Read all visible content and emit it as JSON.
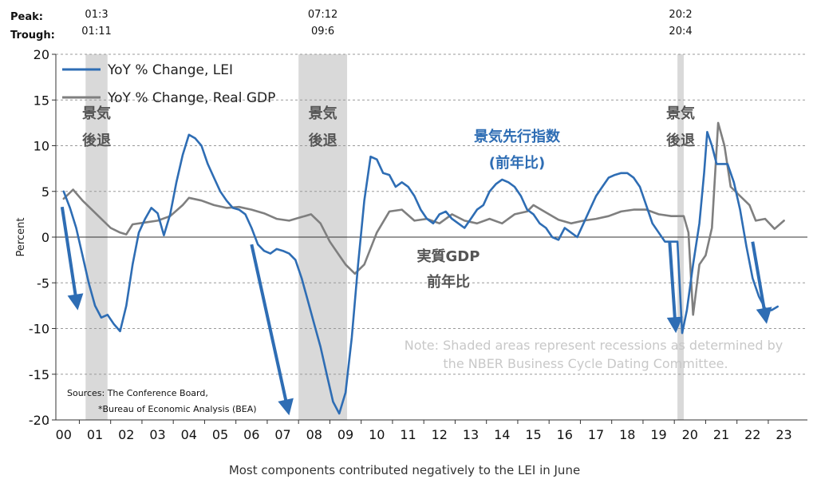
{
  "chart_data": {
    "type": "line",
    "ylabel": "Percent",
    "xlabel": "Most components contributed negatively to the LEI in June",
    "ylim": [
      -20,
      20
    ],
    "yticks": [
      "20",
      "15",
      "10",
      "5",
      "0",
      "-5",
      "-10",
      "-15",
      "-20"
    ],
    "xticks": [
      "00",
      "01",
      "02",
      "03",
      "04",
      "05",
      "06",
      "07",
      "08",
      "09",
      "10",
      "11",
      "12",
      "13",
      "14",
      "15",
      "16",
      "17",
      "18",
      "19",
      "20",
      "21",
      "22",
      "23"
    ],
    "grid": "horizontal dashed",
    "legend_position": "top-left",
    "series": [
      {
        "name": "YoY % Change, LEI",
        "color": "#2e6db4",
        "points": [
          [
            2000.0,
            5.0
          ],
          [
            2000.2,
            3.2
          ],
          [
            2000.4,
            1.0
          ],
          [
            2000.6,
            -2.0
          ],
          [
            2000.8,
            -5.0
          ],
          [
            2001.0,
            -7.5
          ],
          [
            2001.2,
            -8.8
          ],
          [
            2001.4,
            -8.5
          ],
          [
            2001.6,
            -9.5
          ],
          [
            2001.8,
            -10.3
          ],
          [
            2002.0,
            -7.5
          ],
          [
            2002.2,
            -3.0
          ],
          [
            2002.4,
            0.5
          ],
          [
            2002.6,
            2.0
          ],
          [
            2002.8,
            3.2
          ],
          [
            2003.0,
            2.6
          ],
          [
            2003.2,
            0.2
          ],
          [
            2003.4,
            2.5
          ],
          [
            2003.6,
            6.0
          ],
          [
            2003.8,
            9.0
          ],
          [
            2004.0,
            11.2
          ],
          [
            2004.2,
            10.8
          ],
          [
            2004.4,
            10.0
          ],
          [
            2004.6,
            8.0
          ],
          [
            2004.8,
            6.5
          ],
          [
            2005.0,
            5.0
          ],
          [
            2005.2,
            4.0
          ],
          [
            2005.4,
            3.2
          ],
          [
            2005.6,
            3.0
          ],
          [
            2005.8,
            2.5
          ],
          [
            2006.0,
            1.0
          ],
          [
            2006.2,
            -0.8
          ],
          [
            2006.4,
            -1.5
          ],
          [
            2006.6,
            -1.8
          ],
          [
            2006.8,
            -1.3
          ],
          [
            2007.0,
            -1.5
          ],
          [
            2007.2,
            -1.8
          ],
          [
            2007.4,
            -2.5
          ],
          [
            2007.6,
            -4.5
          ],
          [
            2007.8,
            -7.0
          ],
          [
            2008.0,
            -9.5
          ],
          [
            2008.2,
            -12.0
          ],
          [
            2008.4,
            -15.0
          ],
          [
            2008.6,
            -18.0
          ],
          [
            2008.8,
            -19.3
          ],
          [
            2009.0,
            -17.0
          ],
          [
            2009.2,
            -11.0
          ],
          [
            2009.4,
            -3.0
          ],
          [
            2009.6,
            4.0
          ],
          [
            2009.8,
            8.8
          ],
          [
            2010.0,
            8.5
          ],
          [
            2010.2,
            7.0
          ],
          [
            2010.4,
            6.8
          ],
          [
            2010.6,
            5.5
          ],
          [
            2010.8,
            6.0
          ],
          [
            2011.0,
            5.5
          ],
          [
            2011.2,
            4.5
          ],
          [
            2011.4,
            3.0
          ],
          [
            2011.6,
            2.0
          ],
          [
            2011.8,
            1.5
          ],
          [
            2012.0,
            2.5
          ],
          [
            2012.2,
            2.8
          ],
          [
            2012.4,
            2.0
          ],
          [
            2012.6,
            1.5
          ],
          [
            2012.8,
            1.0
          ],
          [
            2013.0,
            2.0
          ],
          [
            2013.2,
            3.0
          ],
          [
            2013.4,
            3.5
          ],
          [
            2013.6,
            5.0
          ],
          [
            2013.8,
            5.8
          ],
          [
            2014.0,
            6.3
          ],
          [
            2014.2,
            6.0
          ],
          [
            2014.4,
            5.5
          ],
          [
            2014.6,
            4.5
          ],
          [
            2014.8,
            3.0
          ],
          [
            2015.0,
            2.5
          ],
          [
            2015.2,
            1.5
          ],
          [
            2015.4,
            1.0
          ],
          [
            2015.6,
            0.0
          ],
          [
            2015.8,
            -0.3
          ],
          [
            2016.0,
            1.0
          ],
          [
            2016.2,
            0.5
          ],
          [
            2016.4,
            0.0
          ],
          [
            2016.6,
            1.5
          ],
          [
            2016.8,
            3.0
          ],
          [
            2017.0,
            4.5
          ],
          [
            2017.2,
            5.5
          ],
          [
            2017.4,
            6.5
          ],
          [
            2017.6,
            6.8
          ],
          [
            2017.8,
            7.0
          ],
          [
            2018.0,
            7.0
          ],
          [
            2018.2,
            6.5
          ],
          [
            2018.4,
            5.5
          ],
          [
            2018.6,
            3.5
          ],
          [
            2018.8,
            1.5
          ],
          [
            2019.0,
            0.5
          ],
          [
            2019.2,
            -0.5
          ],
          [
            2019.4,
            -0.5
          ],
          [
            2019.6,
            -0.5
          ],
          [
            2019.75,
            -10.5
          ],
          [
            2019.9,
            -8.0
          ],
          [
            2020.1,
            -3.0
          ],
          [
            2020.3,
            1.5
          ],
          [
            2020.45,
            7.0
          ],
          [
            2020.55,
            11.5
          ],
          [
            2020.7,
            10.0
          ],
          [
            2020.85,
            8.0
          ],
          [
            2021.0,
            8.0
          ],
          [
            2021.2,
            8.0
          ],
          [
            2021.4,
            6.0
          ],
          [
            2021.6,
            3.0
          ],
          [
            2021.8,
            -1.0
          ],
          [
            2022.0,
            -4.5
          ],
          [
            2022.2,
            -6.5
          ],
          [
            2022.4,
            -7.8
          ],
          [
            2022.6,
            -8.0
          ],
          [
            2022.8,
            -7.6
          ]
        ]
      },
      {
        "name": "YoY % Change, Real GDP",
        "color": "#7f7f7f",
        "points": [
          [
            2000.0,
            4.2
          ],
          [
            2000.3,
            5.2
          ],
          [
            2000.6,
            4.0
          ],
          [
            2000.9,
            3.0
          ],
          [
            2001.2,
            2.0
          ],
          [
            2001.5,
            1.0
          ],
          [
            2001.8,
            0.5
          ],
          [
            2002.0,
            0.3
          ],
          [
            2002.2,
            1.4
          ],
          [
            2002.6,
            1.6
          ],
          [
            2003.0,
            1.8
          ],
          [
            2003.4,
            2.3
          ],
          [
            2003.8,
            3.5
          ],
          [
            2004.0,
            4.3
          ],
          [
            2004.4,
            4.0
          ],
          [
            2004.8,
            3.5
          ],
          [
            2005.2,
            3.2
          ],
          [
            2005.6,
            3.3
          ],
          [
            2006.0,
            3.0
          ],
          [
            2006.4,
            2.6
          ],
          [
            2006.8,
            2.0
          ],
          [
            2007.2,
            1.8
          ],
          [
            2007.6,
            2.2
          ],
          [
            2007.9,
            2.5
          ],
          [
            2008.2,
            1.5
          ],
          [
            2008.5,
            -0.5
          ],
          [
            2008.8,
            -2.0
          ],
          [
            2009.0,
            -3.0
          ],
          [
            2009.3,
            -4.0
          ],
          [
            2009.6,
            -3.0
          ],
          [
            2010.0,
            0.5
          ],
          [
            2010.4,
            2.8
          ],
          [
            2010.8,
            3.0
          ],
          [
            2011.2,
            1.8
          ],
          [
            2011.6,
            2.0
          ],
          [
            2012.0,
            1.5
          ],
          [
            2012.4,
            2.5
          ],
          [
            2012.8,
            1.8
          ],
          [
            2013.2,
            1.5
          ],
          [
            2013.6,
            2.0
          ],
          [
            2014.0,
            1.5
          ],
          [
            2014.4,
            2.5
          ],
          [
            2014.8,
            2.8
          ],
          [
            2015.0,
            3.5
          ],
          [
            2015.4,
            2.7
          ],
          [
            2015.8,
            1.9
          ],
          [
            2016.2,
            1.5
          ],
          [
            2016.6,
            1.8
          ],
          [
            2017.0,
            2.0
          ],
          [
            2017.4,
            2.3
          ],
          [
            2017.8,
            2.8
          ],
          [
            2018.2,
            3.0
          ],
          [
            2018.6,
            3.0
          ],
          [
            2019.0,
            2.5
          ],
          [
            2019.4,
            2.3
          ],
          [
            2019.8,
            2.3
          ],
          [
            2019.95,
            0.5
          ],
          [
            2020.1,
            -8.5
          ],
          [
            2020.3,
            -3.0
          ],
          [
            2020.5,
            -2.0
          ],
          [
            2020.7,
            1.0
          ],
          [
            2020.9,
            12.5
          ],
          [
            2021.1,
            10.0
          ],
          [
            2021.3,
            5.5
          ],
          [
            2021.6,
            4.5
          ],
          [
            2021.9,
            3.5
          ],
          [
            2022.1,
            1.8
          ],
          [
            2022.4,
            2.0
          ],
          [
            2022.7,
            0.9
          ],
          [
            2023.0,
            1.8
          ]
        ]
      }
    ],
    "recessions": [
      {
        "start": 2000.7,
        "end": 2001.4,
        "label_top": "景気",
        "label_bottom": "後退",
        "peak": "01:3",
        "trough": "01:11"
      },
      {
        "start": 2007.5,
        "end": 2009.05,
        "label_top": "景気",
        "label_bottom": "後退",
        "peak": "07:12",
        "trough": "09:6"
      },
      {
        "start": 2019.6,
        "end": 2019.8,
        "label_top": "景気",
        "label_bottom": "後退",
        "peak": "20:2",
        "trough": "20:4"
      }
    ],
    "arrows": [
      {
        "from": [
          1999.95,
          3.3
        ],
        "to": [
          2000.45,
          -8.0
        ]
      },
      {
        "from": [
          2006.0,
          -0.8
        ],
        "to": [
          2007.2,
          -19.5
        ]
      },
      {
        "from": [
          2019.35,
          -0.5
        ],
        "to": [
          2019.55,
          -10.5
        ]
      },
      {
        "from": [
          2022.0,
          -0.5
        ],
        "to": [
          2022.45,
          -9.5
        ]
      }
    ],
    "annotations": {
      "lei_line1": "景気先行指数",
      "lei_line2": "(前年比)",
      "gdp_line1": "実質GDP",
      "gdp_line2": "前年比",
      "note_line1": "Note: Shaded areas represent recessions as determined by",
      "note_line2": "the NBER Business Cycle Dating Committee.",
      "source_line1": "Sources: The Conference Board,",
      "source_line2": "*Bureau of Economic Analysis (BEA)",
      "peak_label": "Peak:",
      "trough_label": "Trough:"
    },
    "colors": {
      "lei": "#2e6db4",
      "gdp": "#7f7f7f",
      "recession": "#d9d9d9",
      "arrow": "#2e6db4",
      "note": "#c8c8c8"
    }
  }
}
